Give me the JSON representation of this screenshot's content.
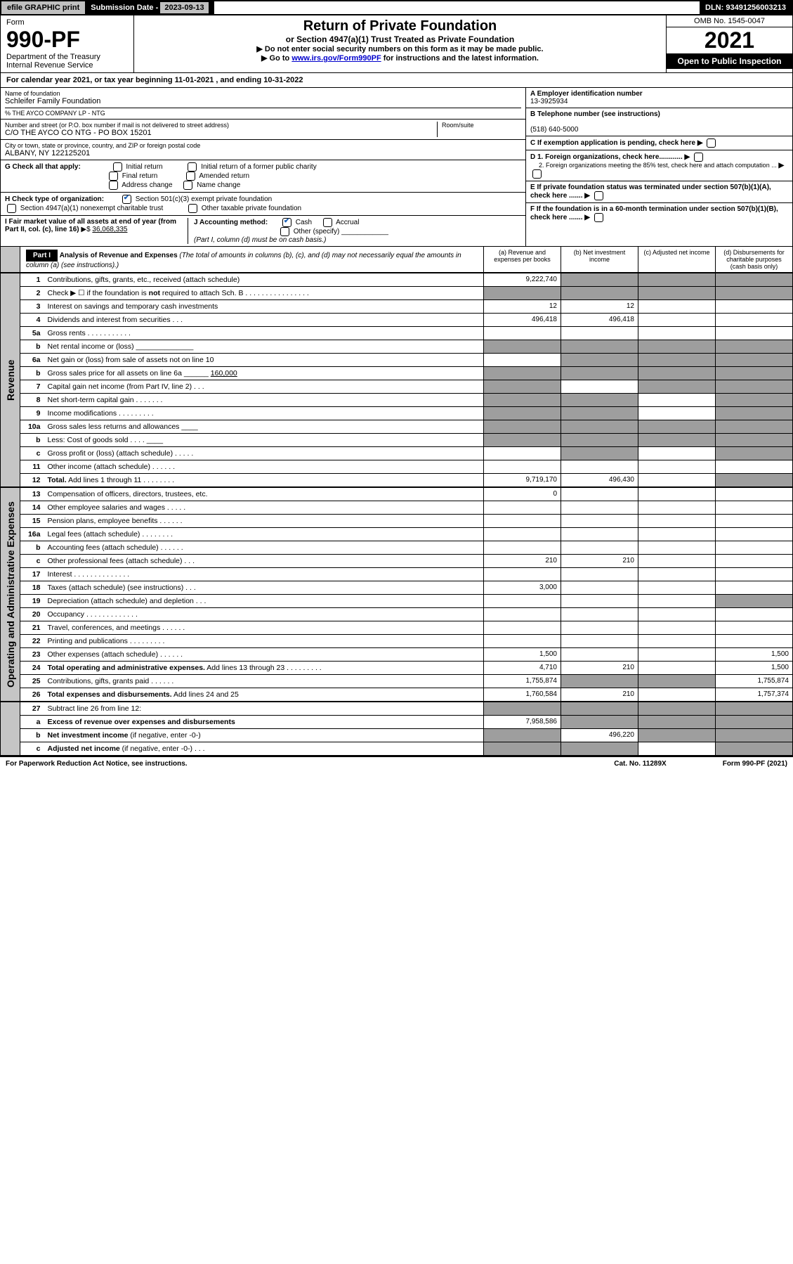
{
  "header": {
    "efile": "efile GRAPHIC print",
    "subdate_label": "Submission Date - ",
    "subdate": "2023-09-13",
    "dln": "DLN: 93491256003213"
  },
  "form": {
    "form_label": "Form",
    "number": "990-PF",
    "dept": "Department of the Treasury\nInternal Revenue Service",
    "title": "Return of Private Foundation",
    "subtitle": "or Section 4947(a)(1) Trust Treated as Private Foundation",
    "instr1": "▶ Do not enter social security numbers on this form as it may be made public.",
    "instr2_pre": "▶ Go to ",
    "instr2_link": "www.irs.gov/Form990PF",
    "instr2_post": " for instructions and the latest information.",
    "omb": "OMB No. 1545-0047",
    "year": "2021",
    "open": "Open to Public Inspection"
  },
  "calbar": {
    "text_pre": "For calendar year 2021, or tax year beginning ",
    "begin": "11-01-2021",
    "text_mid": " , and ending ",
    "end": "10-31-2022"
  },
  "entity": {
    "name_label": "Name of foundation",
    "name": "Schleifer Family Foundation",
    "care_of": "% THE AYCO COMPANY LP - NTG",
    "addr_label": "Number and street (or P.O. box number if mail is not delivered to street address)",
    "addr": "C/O THE AYCO CO NTG - PO BOX 15201",
    "room_label": "Room/suite",
    "city_label": "City or town, state or province, country, and ZIP or foreign postal code",
    "city": "ALBANY, NY  122125201",
    "ein_label": "A Employer identification number",
    "ein": "13-3925934",
    "phone_label": "B Telephone number (see instructions)",
    "phone": "(518) 640-5000",
    "c_label": "C If exemption application is pending, check here",
    "d1": "D 1. Foreign organizations, check here............",
    "d2": "2. Foreign organizations meeting the 85% test, check here and attach computation ...",
    "e_label": "E  If private foundation status was terminated under section 507(b)(1)(A), check here .......",
    "f_label": "F  If the foundation is in a 60-month termination under section 507(b)(1)(B), check here .......",
    "g_label": "G Check all that apply:",
    "g_opts": [
      "Initial return",
      "Initial return of a former public charity",
      "Final return",
      "Amended return",
      "Address change",
      "Name change"
    ],
    "h_label": "H Check type of organization:",
    "h_opt1": "Section 501(c)(3) exempt private foundation",
    "h_opt2": "Section 4947(a)(1) nonexempt charitable trust",
    "h_opt3": "Other taxable private foundation",
    "i_label": "I Fair market value of all assets at end of year (from Part II, col. (c), line 16)",
    "i_value": "36,068,335",
    "j_label": "J Accounting method:",
    "j_cash": "Cash",
    "j_accrual": "Accrual",
    "j_other": "Other (specify)",
    "j_note": "(Part I, column (d) must be on cash basis.)"
  },
  "part1": {
    "label": "Part I",
    "title": "Analysis of Revenue and Expenses",
    "title_note": "(The total of amounts in columns (b), (c), and (d) may not necessarily equal the amounts in column (a) (see instructions).)",
    "col_a": "(a)  Revenue and expenses per books",
    "col_b": "(b)  Net investment income",
    "col_c": "(c)  Adjusted net income",
    "col_d": "(d)  Disbursements for charitable purposes (cash basis only)"
  },
  "sidebars": {
    "revenue": "Revenue",
    "expenses": "Operating and Administrative Expenses"
  },
  "lines": [
    {
      "n": "1",
      "t": "Contributions, gifts, grants, etc., received (attach schedule)",
      "a": "9,222,740",
      "b": "",
      "shade_b": true,
      "shade_c": true,
      "shade_d": true
    },
    {
      "n": "2",
      "t": "Check ▶ ☐ if the foundation is <b>not</b> required to attach Sch. B   .  .  .  .  .  .  .  .  .  .  .  .  .  .  .  .",
      "shade_a": true,
      "shade_b": true,
      "shade_c": true,
      "shade_d": true
    },
    {
      "n": "3",
      "t": "Interest on savings and temporary cash investments",
      "a": "12",
      "b": "12"
    },
    {
      "n": "4",
      "t": "Dividends and interest from securities   .   .   .",
      "a": "496,418",
      "b": "496,418"
    },
    {
      "n": "5a",
      "t": "Gross rents    .   .   .   .   .   .   .   .   .   .   ."
    },
    {
      "n": "b",
      "t": "Net rental income or (loss)  ______________",
      "shade_a": true,
      "shade_b": true,
      "shade_c": true,
      "shade_d": true
    },
    {
      "n": "6a",
      "t": "Net gain or (loss) from sale of assets not on line 10",
      "shade_b": true,
      "shade_c": true,
      "shade_d": true
    },
    {
      "n": "b",
      "t": "Gross sales price for all assets on line 6a ______ <u>160,000</u>",
      "shade_a": true,
      "shade_b": true,
      "shade_c": true,
      "shade_d": true
    },
    {
      "n": "7",
      "t": "Capital gain net income (from Part IV, line 2)   .   .   .",
      "shade_a": true,
      "shade_c": true,
      "shade_d": true
    },
    {
      "n": "8",
      "t": "Net short-term capital gain   .   .   .   .   .   .   .",
      "shade_a": true,
      "shade_b": true,
      "shade_d": true
    },
    {
      "n": "9",
      "t": "Income modifications   .   .   .   .   .   .   .   .   .",
      "shade_a": true,
      "shade_b": true,
      "shade_d": true
    },
    {
      "n": "10a",
      "t": "Gross sales less returns and allowances  ____",
      "shade_a": true,
      "shade_b": true,
      "shade_c": true,
      "shade_d": true
    },
    {
      "n": "b",
      "t": "Less: Cost of goods sold    .   .   .   .  ____",
      "shade_a": true,
      "shade_b": true,
      "shade_c": true,
      "shade_d": true
    },
    {
      "n": "c",
      "t": "Gross profit or (loss) (attach schedule)    .   .   .   .   .",
      "shade_b": true,
      "shade_d": true
    },
    {
      "n": "11",
      "t": "Other income (attach schedule)    .   .   .   .   .   ."
    },
    {
      "n": "12",
      "t": "<b>Total.</b> Add lines 1 through 11   .   .   .   .   .   .   .   .",
      "a": "9,719,170",
      "b": "496,430",
      "shade_d": true
    }
  ],
  "expense_lines": [
    {
      "n": "13",
      "t": "Compensation of officers, directors, trustees, etc.",
      "a": "0"
    },
    {
      "n": "14",
      "t": "Other employee salaries and wages   .   .   .   .   ."
    },
    {
      "n": "15",
      "t": "Pension plans, employee benefits   .   .   .   .   .   ."
    },
    {
      "n": "16a",
      "t": "Legal fees (attach schedule)  .   .   .   .   .   .   .   ."
    },
    {
      "n": "b",
      "t": "Accounting fees (attach schedule)  .   .   .   .   .   ."
    },
    {
      "n": "c",
      "t": "Other professional fees (attach schedule)    .   .   .",
      "a": "210",
      "b": "210"
    },
    {
      "n": "17",
      "t": "Interest  .   .   .   .   .   .   .   .   .   .   .   .   .   ."
    },
    {
      "n": "18",
      "t": "Taxes (attach schedule) (see instructions)    .   .   .",
      "a": "3,000"
    },
    {
      "n": "19",
      "t": "Depreciation (attach schedule) and depletion    .   .   .",
      "shade_d": true
    },
    {
      "n": "20",
      "t": "Occupancy  .   .   .   .   .   .   .   .   .   .   .   .   ."
    },
    {
      "n": "21",
      "t": "Travel, conferences, and meetings  .   .   .   .   .   ."
    },
    {
      "n": "22",
      "t": "Printing and publications  .   .   .   .   .   .   .   .   ."
    },
    {
      "n": "23",
      "t": "Other expenses (attach schedule)  .   .   .   .   .   .",
      "a": "1,500",
      "d": "1,500"
    },
    {
      "n": "24",
      "t": "<b>Total operating and administrative expenses.</b> Add lines 13 through 23   .   .   .   .   .   .   .   .   .",
      "a": "4,710",
      "b": "210",
      "d": "1,500"
    },
    {
      "n": "25",
      "t": "Contributions, gifts, grants paid    .   .   .   .   .   .",
      "a": "1,755,874",
      "shade_b": true,
      "shade_c": true,
      "d": "1,755,874"
    },
    {
      "n": "26",
      "t": "<b>Total expenses and disbursements.</b> Add lines 24 and 25",
      "a": "1,760,584",
      "b": "210",
      "d": "1,757,374"
    }
  ],
  "bottom_lines": [
    {
      "n": "27",
      "t": "Subtract line 26 from line 12:",
      "shade_a": true,
      "shade_b": true,
      "shade_c": true,
      "shade_d": true
    },
    {
      "n": "a",
      "t": "<b>Excess of revenue over expenses and disbursements</b>",
      "a": "7,958,586",
      "shade_b": true,
      "shade_c": true,
      "shade_d": true
    },
    {
      "n": "b",
      "t": "<b>Net investment income</b> (if negative, enter -0-)",
      "shade_a": true,
      "b": "496,220",
      "shade_c": true,
      "shade_d": true
    },
    {
      "n": "c",
      "t": "<b>Adjusted net income</b> (if negative, enter -0-)   .   .   .",
      "shade_a": true,
      "shade_b": true,
      "shade_d": true
    }
  ],
  "footer": {
    "pra": "For Paperwork Reduction Act Notice, see instructions.",
    "cat": "Cat. No. 11289X",
    "form": "Form 990-PF (2021)"
  }
}
